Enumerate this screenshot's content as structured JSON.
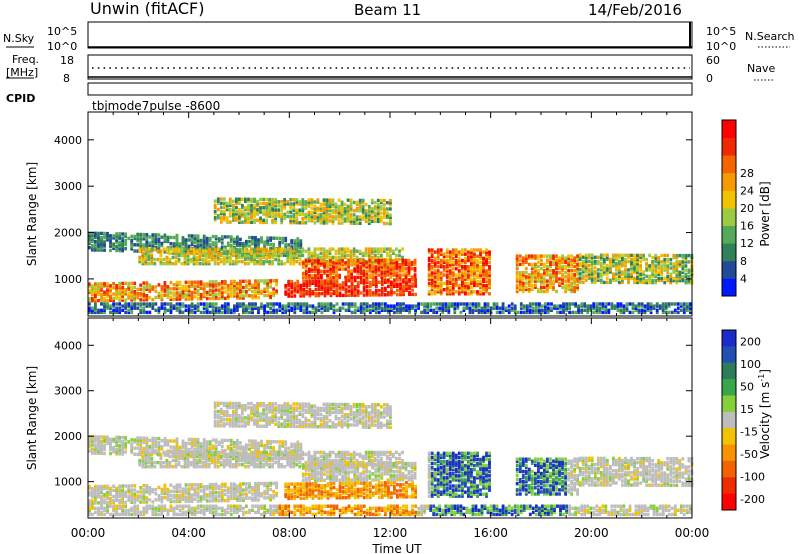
{
  "header": {
    "station": "Unwin (fitACF)",
    "beam": "Beam 11",
    "date": "14/Feb/2016"
  },
  "strips": {
    "nsky_label": "N.Sky",
    "nsky_ticks": [
      "10^5",
      "10^0"
    ],
    "nsearch_ticks": [
      "10^5",
      "10^0"
    ],
    "nsearch_label": "N.Search",
    "freq_label_1": "Freq.",
    "freq_label_2": "[MHz]",
    "freq_ticks": [
      "18",
      "8"
    ],
    "nave_ticks": [
      "60",
      "0"
    ],
    "nave_label": "Nave",
    "cpid_label": "CPID",
    "cpid_text": "tbjmode7pulse -8600"
  },
  "chart_data": [
    {
      "type": "heatmap",
      "name": "power",
      "ylabel": "Slant Range [km]",
      "yticks": [
        1000,
        2000,
        3000,
        4000
      ],
      "ylim": [
        200,
        4600
      ],
      "xlim": [
        0,
        24
      ],
      "colorbar": {
        "label": "Power [dB]",
        "ticks": [
          4,
          8,
          12,
          16,
          20,
          24,
          28
        ],
        "colors": [
          "#0018ff",
          "#22499a",
          "#2f8257",
          "#54aa5a",
          "#9ccb42",
          "#f2c300",
          "#f59a00",
          "#f46400",
          "#ee2a00",
          "#ff0000"
        ]
      }
    },
    {
      "type": "heatmap",
      "name": "velocity",
      "ylabel": "Slant Range [km]",
      "yticks": [
        1000,
        2000,
        3000,
        4000
      ],
      "ylim": [
        200,
        4600
      ],
      "xlim": [
        0,
        24
      ],
      "colorbar": {
        "label": "Velocity [m s",
        "label_sup": "-1",
        "label_end": "]",
        "ticks": [
          "200",
          "100",
          "50",
          "15",
          "-15",
          "-50",
          "-100",
          "-200"
        ],
        "colors": [
          "#1a2bc8",
          "#2150b4",
          "#2d7d58",
          "#3aa54a",
          "#84cf3a",
          "#bdbdbd",
          "#f2c200",
          "#f59300",
          "#f26200",
          "#ee2c00",
          "#ff0000"
        ]
      }
    }
  ],
  "xaxis": {
    "label": "Time UT",
    "ticks": [
      "00:00",
      "04:00",
      "08:00",
      "12:00",
      "16:00",
      "20:00",
      "00:00"
    ]
  }
}
